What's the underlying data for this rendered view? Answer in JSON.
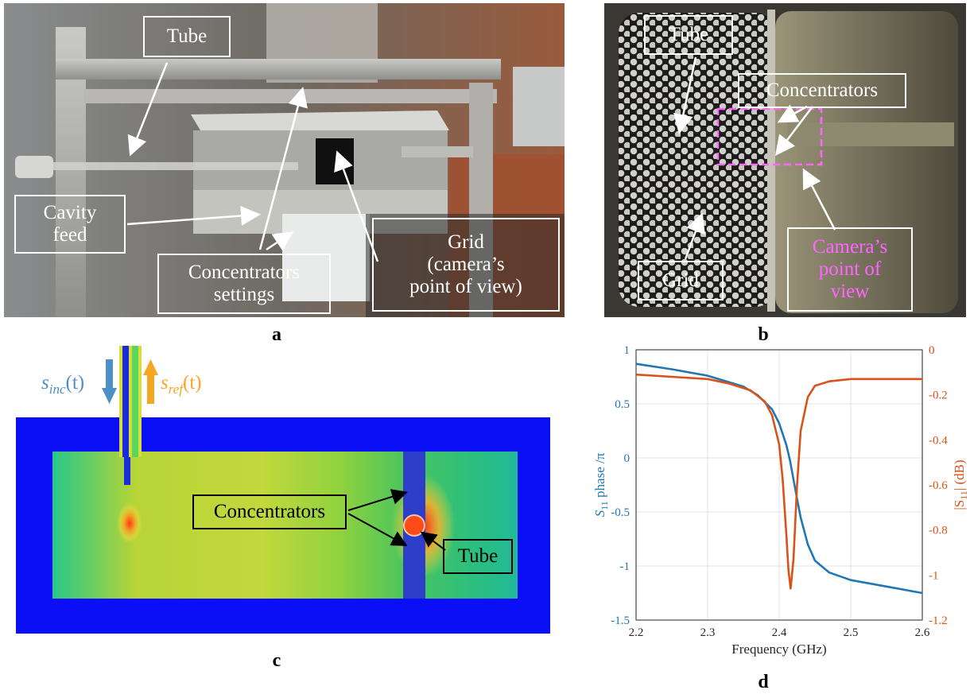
{
  "panels": {
    "a": {
      "label": "a",
      "callouts": {
        "tube": "Tube",
        "cavity_feed": "Cavity\nfeed",
        "concentrators_settings": "Concentrators\nsettings",
        "grid": "Grid\n(camera’s\npoint of view)"
      }
    },
    "b": {
      "label": "b",
      "callouts": {
        "tube": "Tube",
        "concentrators": "Concentrators",
        "grid": "Grid",
        "camera_view": "Camera’s\npoint of\nview"
      },
      "camera_view_color": "#ff66ff"
    },
    "c": {
      "label": "c",
      "s_inc": {
        "base": "s",
        "sub": "inc",
        "arg": "(t)",
        "color": "#4e8fc7"
      },
      "s_ref": {
        "base": "s",
        "sub": "ref",
        "arg": "(t)",
        "color": "#f5a623"
      },
      "callouts": {
        "concentrators": "Concentrators",
        "tube": "Tube"
      }
    },
    "d": {
      "label": "d",
      "xlabel": "Frequency (GHz)",
      "ylabel_left": {
        "base": "S",
        "sub": "11",
        "rest": " phase /π"
      },
      "ylabel_right": {
        "pre": "|S",
        "sub": "11",
        "rest": "| (dB)"
      }
    }
  },
  "colors": {
    "phase_series": "#1f77b4",
    "magnitude_series": "#d95319",
    "field_background": "#0a0ff5"
  },
  "chart_data": {
    "type": "line",
    "xlabel": "Frequency (GHz)",
    "xlim": [
      2.2,
      2.6
    ],
    "xticks": [
      "2.2",
      "2.3",
      "2.4",
      "2.5",
      "2.6"
    ],
    "grid": true,
    "y_left": {
      "label": "S11 phase /π",
      "lim": [
        -1.5,
        1
      ],
      "ticks": [
        "1",
        "0.5",
        "0",
        "-0.5",
        "-1",
        "-1.5"
      ]
    },
    "y_right": {
      "label": "|S11| (dB)",
      "lim": [
        -1.2,
        0
      ],
      "ticks": [
        "0",
        "-0.2",
        "-0.4",
        "-0.6",
        "-0.8",
        "-1",
        "-1.2"
      ]
    },
    "series": [
      {
        "axis": "left",
        "x": [
          2.2,
          2.25,
          2.3,
          2.35,
          2.37,
          2.39,
          2.4,
          2.41,
          2.415,
          2.42,
          2.425,
          2.43,
          2.44,
          2.45,
          2.47,
          2.5,
          2.55,
          2.6
        ],
        "y": [
          0.87,
          0.82,
          0.76,
          0.66,
          0.58,
          0.45,
          0.32,
          0.12,
          -0.02,
          -0.2,
          -0.38,
          -0.55,
          -0.8,
          -0.95,
          -1.06,
          -1.13,
          -1.19,
          -1.25
        ]
      },
      {
        "axis": "right",
        "x": [
          2.2,
          2.25,
          2.3,
          2.33,
          2.36,
          2.38,
          2.39,
          2.4,
          2.405,
          2.41,
          2.413,
          2.416,
          2.42,
          2.425,
          2.43,
          2.44,
          2.45,
          2.47,
          2.5,
          2.55,
          2.6
        ],
        "y": [
          -0.11,
          -0.12,
          -0.13,
          -0.15,
          -0.18,
          -0.23,
          -0.29,
          -0.42,
          -0.58,
          -0.82,
          -0.98,
          -1.06,
          -0.93,
          -0.6,
          -0.36,
          -0.21,
          -0.16,
          -0.14,
          -0.13,
          -0.13,
          -0.13
        ]
      }
    ]
  }
}
